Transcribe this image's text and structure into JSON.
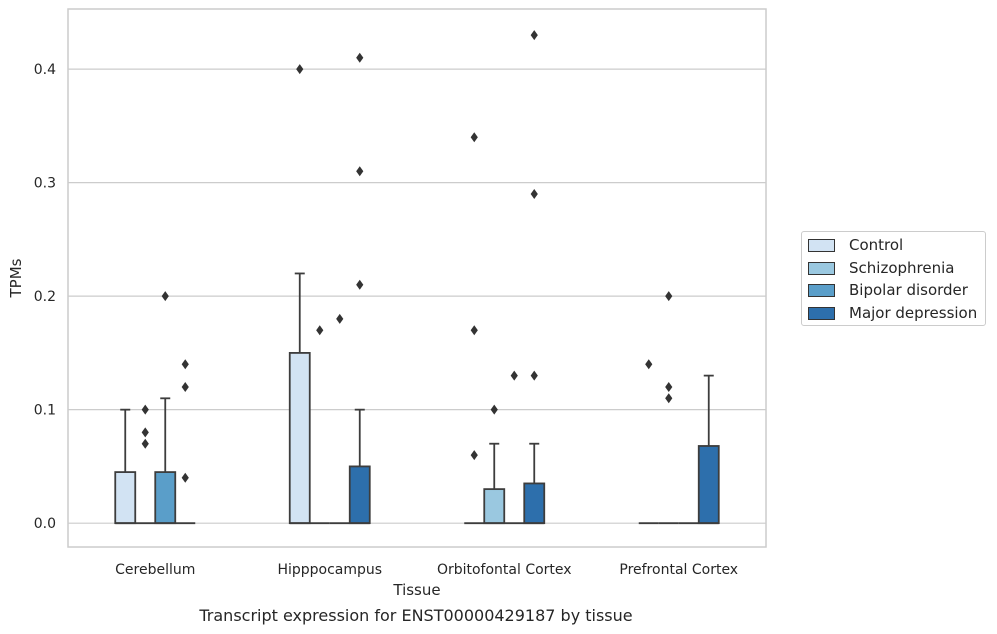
{
  "chart_data": {
    "type": "box",
    "xlabel": "Tissue",
    "ylabel": "TPMs",
    "ylim": [
      -0.021,
      0.453
    ],
    "yticks": [
      0.0,
      0.1,
      0.2,
      0.3,
      0.4
    ],
    "ytick_labels": [
      "0.0",
      "0.1",
      "0.2",
      "0.3",
      "0.4"
    ],
    "grid": "horizontal",
    "legend_position": "right",
    "categories": [
      "Cerebellum",
      "Hipppocampus",
      "Orbitofontal Cortex",
      "Prefrontal Cortex"
    ],
    "series": [
      {
        "name": "Control",
        "color": "#d2e3f3",
        "boxes": [
          {
            "q1": 0,
            "median": 0,
            "q3": 0.045,
            "whisker_low": 0,
            "whisker_high": 0.1,
            "outliers": []
          },
          {
            "q1": 0,
            "median": 0,
            "q3": 0.15,
            "whisker_low": 0,
            "whisker_high": 0.22,
            "outliers": [
              0.4
            ]
          },
          {
            "q1": 0,
            "median": 0,
            "q3": 0,
            "whisker_low": 0,
            "whisker_high": 0,
            "outliers": [
              0.06,
              0.17,
              0.34
            ]
          },
          {
            "q1": 0,
            "median": 0,
            "q3": 0,
            "whisker_low": 0,
            "whisker_high": 0,
            "outliers": [
              0.14
            ]
          }
        ]
      },
      {
        "name": "Schizophrenia",
        "color": "#9ac8e0",
        "boxes": [
          {
            "q1": 0,
            "median": 0,
            "q3": 0,
            "whisker_low": 0,
            "whisker_high": 0,
            "outliers": [
              0.07,
              0.08,
              0.1
            ]
          },
          {
            "q1": 0,
            "median": 0,
            "q3": 0,
            "whisker_low": 0,
            "whisker_high": 0,
            "outliers": [
              0.17
            ]
          },
          {
            "q1": 0,
            "median": 0,
            "q3": 0.03,
            "whisker_low": 0,
            "whisker_high": 0.07,
            "outliers": [
              0.1
            ]
          },
          {
            "q1": 0,
            "median": 0,
            "q3": 0,
            "whisker_low": 0,
            "whisker_high": 0,
            "outliers": [
              0.11,
              0.12,
              0.2
            ]
          }
        ]
      },
      {
        "name": "Bipolar disorder",
        "color": "#5a9ec9",
        "boxes": [
          {
            "q1": 0,
            "median": 0,
            "q3": 0.045,
            "whisker_low": 0,
            "whisker_high": 0.11,
            "outliers": [
              0.2
            ]
          },
          {
            "q1": 0,
            "median": 0,
            "q3": 0,
            "whisker_low": 0,
            "whisker_high": 0,
            "outliers": [
              0.18
            ]
          },
          {
            "q1": 0,
            "median": 0,
            "q3": 0,
            "whisker_low": 0,
            "whisker_high": 0,
            "outliers": [
              0.13
            ]
          },
          {
            "q1": 0,
            "median": 0,
            "q3": 0,
            "whisker_low": 0,
            "whisker_high": 0,
            "outliers": []
          }
        ]
      },
      {
        "name": "Major depression",
        "color": "#2d6fac",
        "boxes": [
          {
            "q1": 0,
            "median": 0,
            "q3": 0,
            "whisker_low": 0,
            "whisker_high": 0,
            "outliers": [
              0.04,
              0.12,
              0.14
            ]
          },
          {
            "q1": 0,
            "median": 0,
            "q3": 0.05,
            "whisker_low": 0,
            "whisker_high": 0.1,
            "outliers": [
              0.21,
              0.31,
              0.41
            ]
          },
          {
            "q1": 0,
            "median": 0,
            "q3": 0.035,
            "whisker_low": 0,
            "whisker_high": 0.07,
            "outliers": [
              0.13,
              0.29,
              0.43
            ]
          },
          {
            "q1": 0,
            "median": 0,
            "q3": 0.068,
            "whisker_low": 0,
            "whisker_high": 0.13,
            "outliers": []
          }
        ]
      }
    ]
  },
  "caption": "Transcript expression for ENST00000429187 by tissue"
}
